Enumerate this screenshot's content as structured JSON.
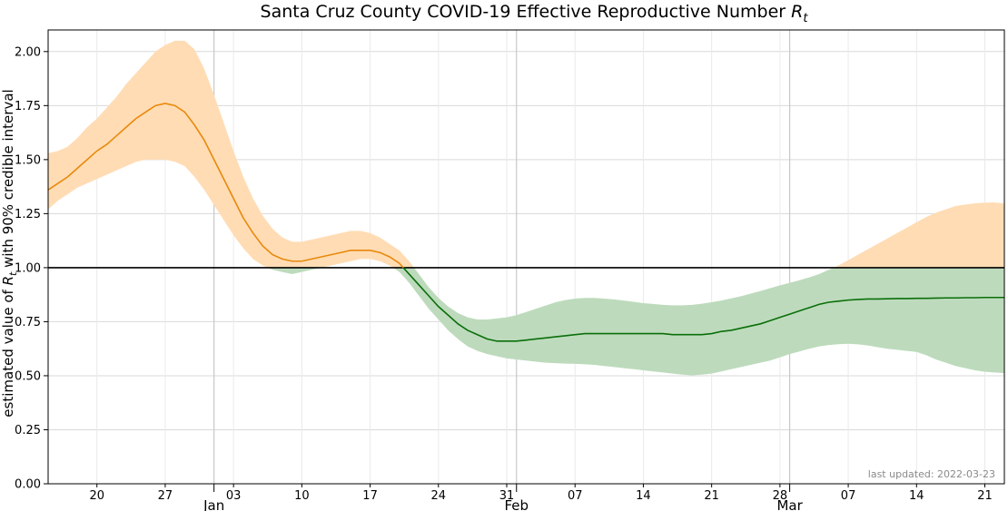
{
  "chart_data": {
    "type": "area",
    "title_main": "Santa Cruz County COVID-19 Effective Reproductive Number ",
    "title_symbol": "R",
    "title_subscript": "t",
    "ylabel_prefix": "estimated value of ",
    "ylabel_symbol": "R",
    "ylabel_subscript": "t",
    "ylabel_suffix": " with 90% credible interval",
    "ylim": [
      0,
      2.1
    ],
    "y_ticks": [
      0.0,
      0.25,
      0.5,
      0.75,
      1.0,
      1.25,
      1.5,
      1.75,
      2.0
    ],
    "y_tick_labels": [
      "0.00",
      "0.25",
      "0.50",
      "0.75",
      "1.00",
      "1.25",
      "1.50",
      "1.75",
      "2.00"
    ],
    "xlim": [
      "2021-12-15",
      "2022-03-23"
    ],
    "day_ticks": [
      {
        "date": "2021-12-20",
        "label": "20"
      },
      {
        "date": "2021-12-27",
        "label": "27"
      },
      {
        "date": "2022-01-03",
        "label": "03"
      },
      {
        "date": "2022-01-10",
        "label": "10"
      },
      {
        "date": "2022-01-17",
        "label": "17"
      },
      {
        "date": "2022-01-24",
        "label": "24"
      },
      {
        "date": "2022-01-31",
        "label": "31"
      },
      {
        "date": "2022-02-07",
        "label": "07"
      },
      {
        "date": "2022-02-14",
        "label": "14"
      },
      {
        "date": "2022-02-21",
        "label": "21"
      },
      {
        "date": "2022-02-28",
        "label": "28"
      },
      {
        "date": "2022-03-07",
        "label": "07"
      },
      {
        "date": "2022-03-14",
        "label": "14"
      },
      {
        "date": "2022-03-21",
        "label": "21"
      }
    ],
    "month_ticks": [
      {
        "date": "2022-01-01",
        "label": "Jan"
      },
      {
        "date": "2022-02-01",
        "label": "Feb"
      },
      {
        "date": "2022-03-01",
        "label": "Mar"
      }
    ],
    "reference_line": 1.0,
    "grid": true,
    "footnote": "last updated: 2022-03-23",
    "colors": {
      "above_line": "#e8890c",
      "above_band": "#ffdcb4",
      "below_line": "#0a6e0a",
      "below_band": "#bddbbc",
      "reference": "#000000",
      "grid": "#d9d9d9"
    },
    "series": [
      {
        "x": [
          "2021-12-15",
          "2021-12-16",
          "2021-12-17",
          "2021-12-18",
          "2021-12-19",
          "2021-12-20",
          "2021-12-21",
          "2021-12-22",
          "2021-12-23",
          "2021-12-24",
          "2021-12-25",
          "2021-12-26",
          "2021-12-27",
          "2021-12-28",
          "2021-12-29",
          "2021-12-30",
          "2021-12-31",
          "2022-01-01",
          "2022-01-02",
          "2022-01-03",
          "2022-01-04",
          "2022-01-05",
          "2022-01-06",
          "2022-01-07",
          "2022-01-08",
          "2022-01-09",
          "2022-01-10",
          "2022-01-11",
          "2022-01-12",
          "2022-01-13",
          "2022-01-14",
          "2022-01-15",
          "2022-01-16",
          "2022-01-17",
          "2022-01-18",
          "2022-01-19",
          "2022-01-20",
          "2022-01-21",
          "2022-01-22",
          "2022-01-23",
          "2022-01-24",
          "2022-01-25",
          "2022-01-26",
          "2022-01-27",
          "2022-01-28",
          "2022-01-29",
          "2022-01-30",
          "2022-01-31",
          "2022-02-01",
          "2022-02-02",
          "2022-02-03",
          "2022-02-04",
          "2022-02-05",
          "2022-02-06",
          "2022-02-07",
          "2022-02-08",
          "2022-02-09",
          "2022-02-10",
          "2022-02-11",
          "2022-02-12",
          "2022-02-13",
          "2022-02-14",
          "2022-02-15",
          "2022-02-16",
          "2022-02-17",
          "2022-02-18",
          "2022-02-19",
          "2022-02-20",
          "2022-02-21",
          "2022-02-22",
          "2022-02-23",
          "2022-02-24",
          "2022-02-25",
          "2022-02-26",
          "2022-02-27",
          "2022-02-28",
          "2022-03-01",
          "2022-03-02",
          "2022-03-03",
          "2022-03-04",
          "2022-03-05",
          "2022-03-06",
          "2022-03-07",
          "2022-03-08",
          "2022-03-09",
          "2022-03-10",
          "2022-03-11",
          "2022-03-12",
          "2022-03-13",
          "2022-03-14",
          "2022-03-15",
          "2022-03-16",
          "2022-03-17",
          "2022-03-18",
          "2022-03-19",
          "2022-03-20",
          "2022-03-21",
          "2022-03-22",
          "2022-03-23"
        ],
        "median": [
          1.36,
          1.39,
          1.42,
          1.46,
          1.5,
          1.54,
          1.57,
          1.61,
          1.65,
          1.69,
          1.72,
          1.75,
          1.76,
          1.75,
          1.72,
          1.66,
          1.59,
          1.5,
          1.41,
          1.32,
          1.23,
          1.16,
          1.1,
          1.06,
          1.04,
          1.03,
          1.03,
          1.04,
          1.05,
          1.06,
          1.07,
          1.08,
          1.08,
          1.08,
          1.07,
          1.05,
          1.02,
          0.97,
          0.92,
          0.87,
          0.82,
          0.78,
          0.74,
          0.71,
          0.69,
          0.67,
          0.66,
          0.66,
          0.66,
          0.665,
          0.67,
          0.675,
          0.68,
          0.685,
          0.69,
          0.695,
          0.695,
          0.695,
          0.695,
          0.695,
          0.695,
          0.695,
          0.695,
          0.695,
          0.69,
          0.69,
          0.69,
          0.69,
          0.695,
          0.705,
          0.71,
          0.72,
          0.73,
          0.74,
          0.755,
          0.77,
          0.785,
          0.8,
          0.815,
          0.83,
          0.84,
          0.845,
          0.85,
          0.853,
          0.855,
          0.855,
          0.856,
          0.857,
          0.857,
          0.858,
          0.858,
          0.859,
          0.86,
          0.86,
          0.861,
          0.861,
          0.862,
          0.862,
          0.862
        ],
        "lower": [
          1.27,
          1.31,
          1.34,
          1.37,
          1.39,
          1.41,
          1.43,
          1.45,
          1.47,
          1.49,
          1.5,
          1.5,
          1.5,
          1.49,
          1.47,
          1.42,
          1.36,
          1.29,
          1.22,
          1.15,
          1.09,
          1.04,
          1.01,
          0.99,
          0.98,
          0.97,
          0.98,
          0.99,
          1.0,
          1.01,
          1.02,
          1.03,
          1.04,
          1.04,
          1.03,
          1.01,
          0.98,
          0.93,
          0.87,
          0.81,
          0.76,
          0.71,
          0.67,
          0.635,
          0.615,
          0.6,
          0.59,
          0.58,
          0.575,
          0.57,
          0.565,
          0.56,
          0.558,
          0.556,
          0.555,
          0.553,
          0.55,
          0.545,
          0.54,
          0.535,
          0.53,
          0.525,
          0.52,
          0.515,
          0.51,
          0.505,
          0.502,
          0.505,
          0.51,
          0.52,
          0.53,
          0.54,
          0.55,
          0.56,
          0.57,
          0.585,
          0.6,
          0.612,
          0.625,
          0.635,
          0.642,
          0.646,
          0.648,
          0.645,
          0.64,
          0.632,
          0.625,
          0.62,
          0.615,
          0.61,
          0.595,
          0.575,
          0.56,
          0.545,
          0.535,
          0.525,
          0.518,
          0.515,
          0.512
        ],
        "upper": [
          1.53,
          1.54,
          1.56,
          1.6,
          1.65,
          1.69,
          1.74,
          1.79,
          1.85,
          1.9,
          1.95,
          2.0,
          2.03,
          2.05,
          2.05,
          2.01,
          1.92,
          1.8,
          1.67,
          1.54,
          1.42,
          1.32,
          1.24,
          1.18,
          1.14,
          1.12,
          1.12,
          1.13,
          1.14,
          1.15,
          1.16,
          1.17,
          1.17,
          1.16,
          1.14,
          1.11,
          1.08,
          1.03,
          0.97,
          0.91,
          0.86,
          0.82,
          0.79,
          0.77,
          0.76,
          0.76,
          0.765,
          0.77,
          0.78,
          0.795,
          0.81,
          0.825,
          0.84,
          0.85,
          0.857,
          0.86,
          0.86,
          0.857,
          0.853,
          0.848,
          0.842,
          0.836,
          0.832,
          0.828,
          0.826,
          0.826,
          0.828,
          0.833,
          0.84,
          0.848,
          0.858,
          0.868,
          0.88,
          0.892,
          0.905,
          0.918,
          0.93,
          0.942,
          0.955,
          0.97,
          0.99,
          1.01,
          1.035,
          1.06,
          1.085,
          1.11,
          1.135,
          1.16,
          1.185,
          1.21,
          1.235,
          1.255,
          1.27,
          1.285,
          1.292,
          1.298,
          1.301,
          1.302,
          1.297
        ]
      }
    ]
  }
}
